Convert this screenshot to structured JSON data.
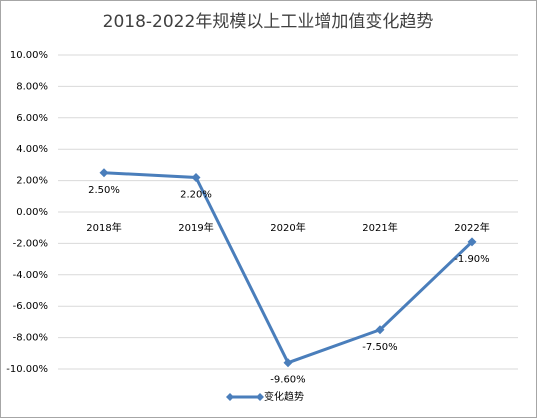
{
  "chart_data": {
    "type": "line",
    "title": "2018-2022年规模以上工业增加值变化趋势",
    "categories": [
      "2018年",
      "2019年",
      "2020年",
      "2021年",
      "2022年"
    ],
    "series": [
      {
        "name": "变化趋势",
        "color": "#4a7ebb",
        "values": [
          2.5,
          2.2,
          -9.6,
          -7.5,
          -1.9
        ],
        "value_labels": [
          "2.50%",
          "2.20%",
          "-9.60%",
          "-7.50%",
          "-1.90%"
        ]
      }
    ],
    "ylim": [
      -10,
      10
    ],
    "yticks": [
      {
        "value": -10,
        "label": "-10.00%"
      },
      {
        "value": -8,
        "label": "-8.00%"
      },
      {
        "value": -6,
        "label": "-6.00%"
      },
      {
        "value": -4,
        "label": "-4.00%"
      },
      {
        "value": -2,
        "label": "-2.00%"
      },
      {
        "value": 0,
        "label": "0.00%"
      },
      {
        "value": 2,
        "label": "2.00%"
      },
      {
        "value": 4,
        "label": "4.00%"
      },
      {
        "value": 6,
        "label": "6.00%"
      },
      {
        "value": 8,
        "label": "8.00%"
      },
      {
        "value": 10,
        "label": "10.00%"
      }
    ],
    "grid": true,
    "legend": "bottom"
  }
}
